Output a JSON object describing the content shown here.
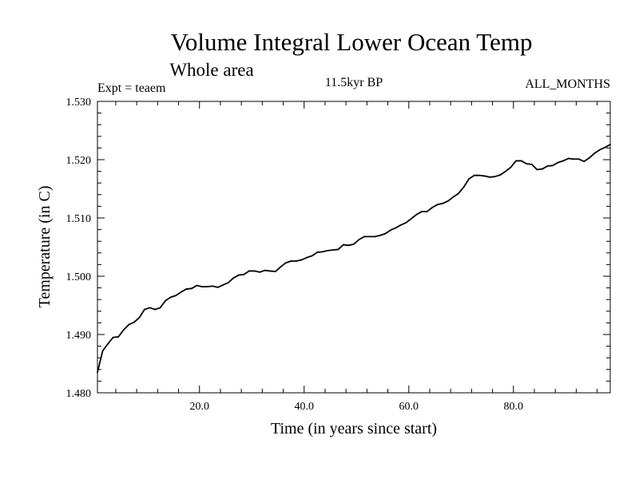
{
  "chart_data": {
    "type": "line",
    "title": "Volume Integral Lower Ocean Temp",
    "subtitle": "Whole area",
    "expt_label": "Expt = teaem",
    "period_label": "11.5kyr BP",
    "months_label": "ALL_MONTHS",
    "xlabel": "Time (in years since start)",
    "ylabel": "Temperature (in C)",
    "xlim": [
      0.5,
      98.5
    ],
    "ylim": [
      1.48,
      1.53
    ],
    "x_ticks": [
      20,
      40,
      60,
      80
    ],
    "x_tick_labels": [
      "20.0",
      "40.0",
      "60.0",
      "80.0"
    ],
    "y_ticks": [
      1.48,
      1.49,
      1.5,
      1.51,
      1.52,
      1.53
    ],
    "y_tick_labels": [
      "1.480",
      "1.490",
      "1.500",
      "1.510",
      "1.520",
      "1.530"
    ],
    "series": [
      {
        "name": "Volume Integral Lower Ocean Temp",
        "color": "#000000",
        "x": [
          0.5,
          1.5,
          2.5,
          3.5,
          4.5,
          5.5,
          6.5,
          7.5,
          8.5,
          9.5,
          10.5,
          11.5,
          12.5,
          13.5,
          14.5,
          15.5,
          16.5,
          17.5,
          18.5,
          19.5,
          20.5,
          21.5,
          22.5,
          23.5,
          24.5,
          25.5,
          26.5,
          27.5,
          28.5,
          29.5,
          30.5,
          31.5,
          32.5,
          33.5,
          34.5,
          35.5,
          36.5,
          37.5,
          38.5,
          39.5,
          40.5,
          41.5,
          42.5,
          43.5,
          44.5,
          45.5,
          46.5,
          47.5,
          48.5,
          49.5,
          50.5,
          51.5,
          52.5,
          53.5,
          54.5,
          55.5,
          56.5,
          57.5,
          58.5,
          59.5,
          60.5,
          61.5,
          62.5,
          63.5,
          64.5,
          65.5,
          66.5,
          67.5,
          68.5,
          69.5,
          70.5,
          71.5,
          72.5,
          73.5,
          74.5,
          75.5,
          76.5,
          77.5,
          78.5,
          79.5,
          80.5,
          81.5,
          82.5,
          83.5,
          84.5,
          85.5,
          86.5,
          87.5,
          88.5,
          89.5,
          90.5,
          91.5,
          92.5,
          93.5,
          94.5,
          95.5,
          96.5,
          97.5,
          98.5
        ],
        "values": [
          1.4835,
          1.4872,
          1.4884,
          1.4895,
          1.4896,
          1.4908,
          1.4917,
          1.4921,
          1.4929,
          1.4943,
          1.4946,
          1.4943,
          1.4946,
          1.4958,
          1.4964,
          1.4967,
          1.4973,
          1.4978,
          1.4979,
          1.4984,
          1.4982,
          1.4982,
          1.4983,
          1.4981,
          1.4985,
          1.4989,
          1.4997,
          1.5002,
          1.5003,
          1.5009,
          1.5009,
          1.5007,
          1.501,
          1.5009,
          1.5008,
          1.5016,
          1.5023,
          1.5026,
          1.5026,
          1.5028,
          1.5032,
          1.5035,
          1.5041,
          1.5042,
          1.5044,
          1.5045,
          1.5046,
          1.5054,
          1.5053,
          1.5055,
          1.5063,
          1.5068,
          1.5068,
          1.5068,
          1.507,
          1.5073,
          1.5079,
          1.5083,
          1.5088,
          1.5092,
          1.5099,
          1.5106,
          1.5111,
          1.5111,
          1.5118,
          1.5123,
          1.5125,
          1.5129,
          1.5136,
          1.5142,
          1.5153,
          1.5167,
          1.5173,
          1.5173,
          1.5172,
          1.517,
          1.5171,
          1.5174,
          1.518,
          1.5187,
          1.5198,
          1.5198,
          1.5193,
          1.5192,
          1.5183,
          1.5184,
          1.5189,
          1.519,
          1.5195,
          1.5198,
          1.5202,
          1.5201,
          1.5201,
          1.5197,
          1.5203,
          1.5211,
          1.5217,
          1.5221,
          1.5226
        ]
      }
    ]
  }
}
